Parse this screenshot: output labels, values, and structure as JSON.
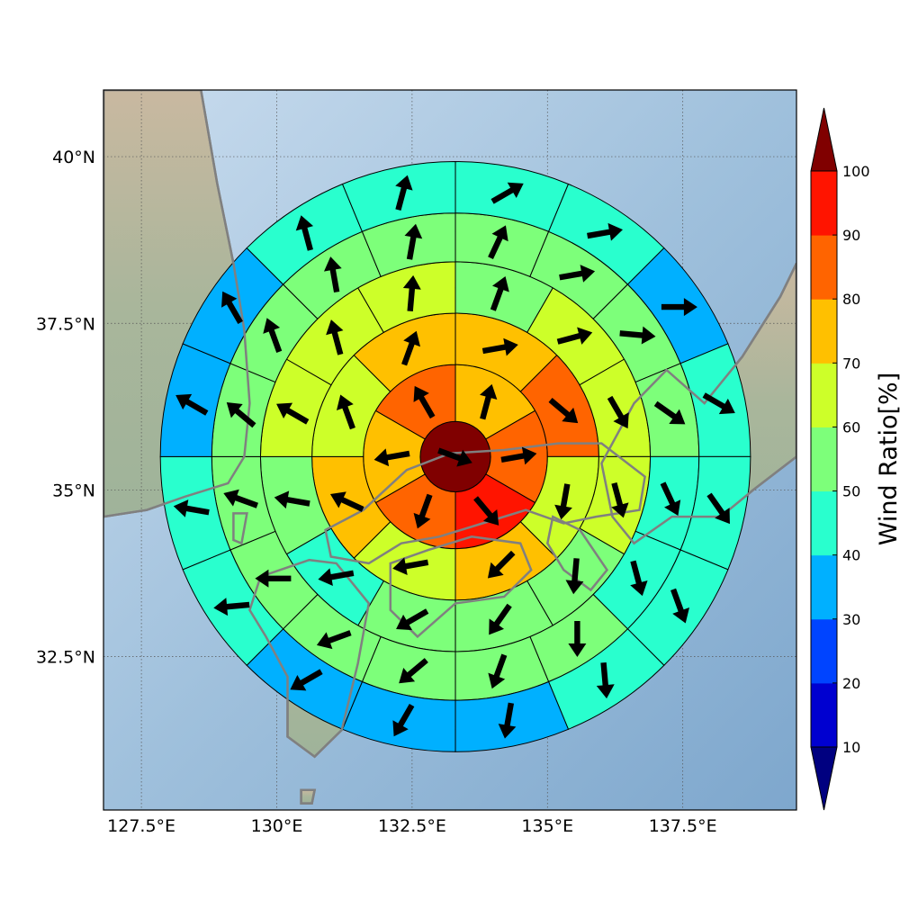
{
  "map": {
    "lon_range": [
      126.8,
      139.6
    ],
    "lat_range": [
      30.2,
      41.0
    ],
    "projection": "plate carree",
    "center": {
      "lon": 133.3,
      "lat": 35.5
    },
    "ring_radii_deg": [
      0.65,
      1.7,
      2.65,
      3.6,
      4.5,
      5.45
    ],
    "ring_sectors": [
      1,
      6,
      8,
      12,
      16,
      16
    ],
    "ring_colors": [
      [
        "#800000"
      ],
      [
        "#ffc000",
        "#ff6400",
        "#ff1400",
        "#ff6400",
        "#ffc000",
        "#ff6400"
      ],
      [
        "#ffc000",
        "#ff6400",
        "#cdff29",
        "#ffc000",
        "#cdff29",
        "#ffc000",
        "#cdff29",
        "#ffc000"
      ],
      [
        "#7dff7a",
        "#cdff29",
        "#cdff29",
        "#cdff29",
        "#7dff7a",
        "#7dff7a",
        "#7dff7a",
        "#29ffce",
        "#7dff7a",
        "#cdff29",
        "#cdff29",
        "#cdff29"
      ],
      [
        "#7dff7a",
        "#7dff7a",
        "#7dff7a",
        "#7dff7a",
        "#29ffce",
        "#29ffce",
        "#7dff7a",
        "#7dff7a",
        "#7dff7a",
        "#7dff7a",
        "#7dff7a",
        "#7dff7a",
        "#7dff7a",
        "#7dff7a",
        "#7dff7a",
        "#7dff7a"
      ],
      [
        "#29ffce",
        "#29ffce",
        "#00b0ff",
        "#29ffce",
        "#29ffce",
        "#29ffce",
        "#29ffce",
        "#00b0ff",
        "#00b0ff",
        "#00b0ff",
        "#29ffce",
        "#29ffce",
        "#00b0ff",
        "#00b0ff",
        "#29ffce",
        "#29ffce"
      ]
    ],
    "wind_direction_deg": [
      [
        110
      ],
      [
        15,
        80,
        140,
        200,
        260,
        330
      ],
      [
        80,
        130,
        190,
        225,
        260,
        295,
        340,
        20
      ],
      [
        20,
        75,
        150,
        165,
        185,
        215,
        240,
        260,
        280,
        300,
        345,
        5
      ],
      [
        25,
        80,
        95,
        125,
        155,
        165,
        180,
        200,
        230,
        250,
        270,
        290,
        310,
        340,
        350,
        10
      ],
      [
        60,
        80,
        90,
        120,
        145,
        160,
        175,
        190,
        210,
        240,
        265,
        280,
        300,
        330,
        345,
        15
      ]
    ],
    "x_ticks": [
      {
        "lon": 127.5,
        "label": "127.5°E"
      },
      {
        "lon": 130,
        "label": "130°E"
      },
      {
        "lon": 132.5,
        "label": "132.5°E"
      },
      {
        "lon": 135,
        "label": "135°E"
      },
      {
        "lon": 137.5,
        "label": "137.5°E"
      }
    ],
    "y_ticks": [
      {
        "lat": 40,
        "label": "40°N"
      },
      {
        "lat": 37.5,
        "label": "37.5°N"
      },
      {
        "lat": 35,
        "label": "35°N"
      },
      {
        "lat": 32.5,
        "label": "32.5°N"
      }
    ],
    "colors": {
      "ocean": "#9dbedb",
      "land": "#b5bfa8",
      "coastline": "#808080",
      "gridline": "#555555",
      "sector_edge": "#000000",
      "arrow": "#000000"
    }
  },
  "colorbar": {
    "label": "Wind Ratio[%]",
    "ticks": [
      "10",
      "20",
      "30",
      "40",
      "50",
      "60",
      "70",
      "80",
      "90",
      "100"
    ],
    "tick_values": [
      10,
      20,
      30,
      40,
      50,
      60,
      70,
      80,
      90,
      100
    ],
    "bands": [
      "#0000d0",
      "#0044ff",
      "#00b0ff",
      "#29ffce",
      "#7dff7a",
      "#cdff29",
      "#ffc000",
      "#ff6400",
      "#ff1400"
    ],
    "under_color": "#000080",
    "over_color": "#800000"
  }
}
